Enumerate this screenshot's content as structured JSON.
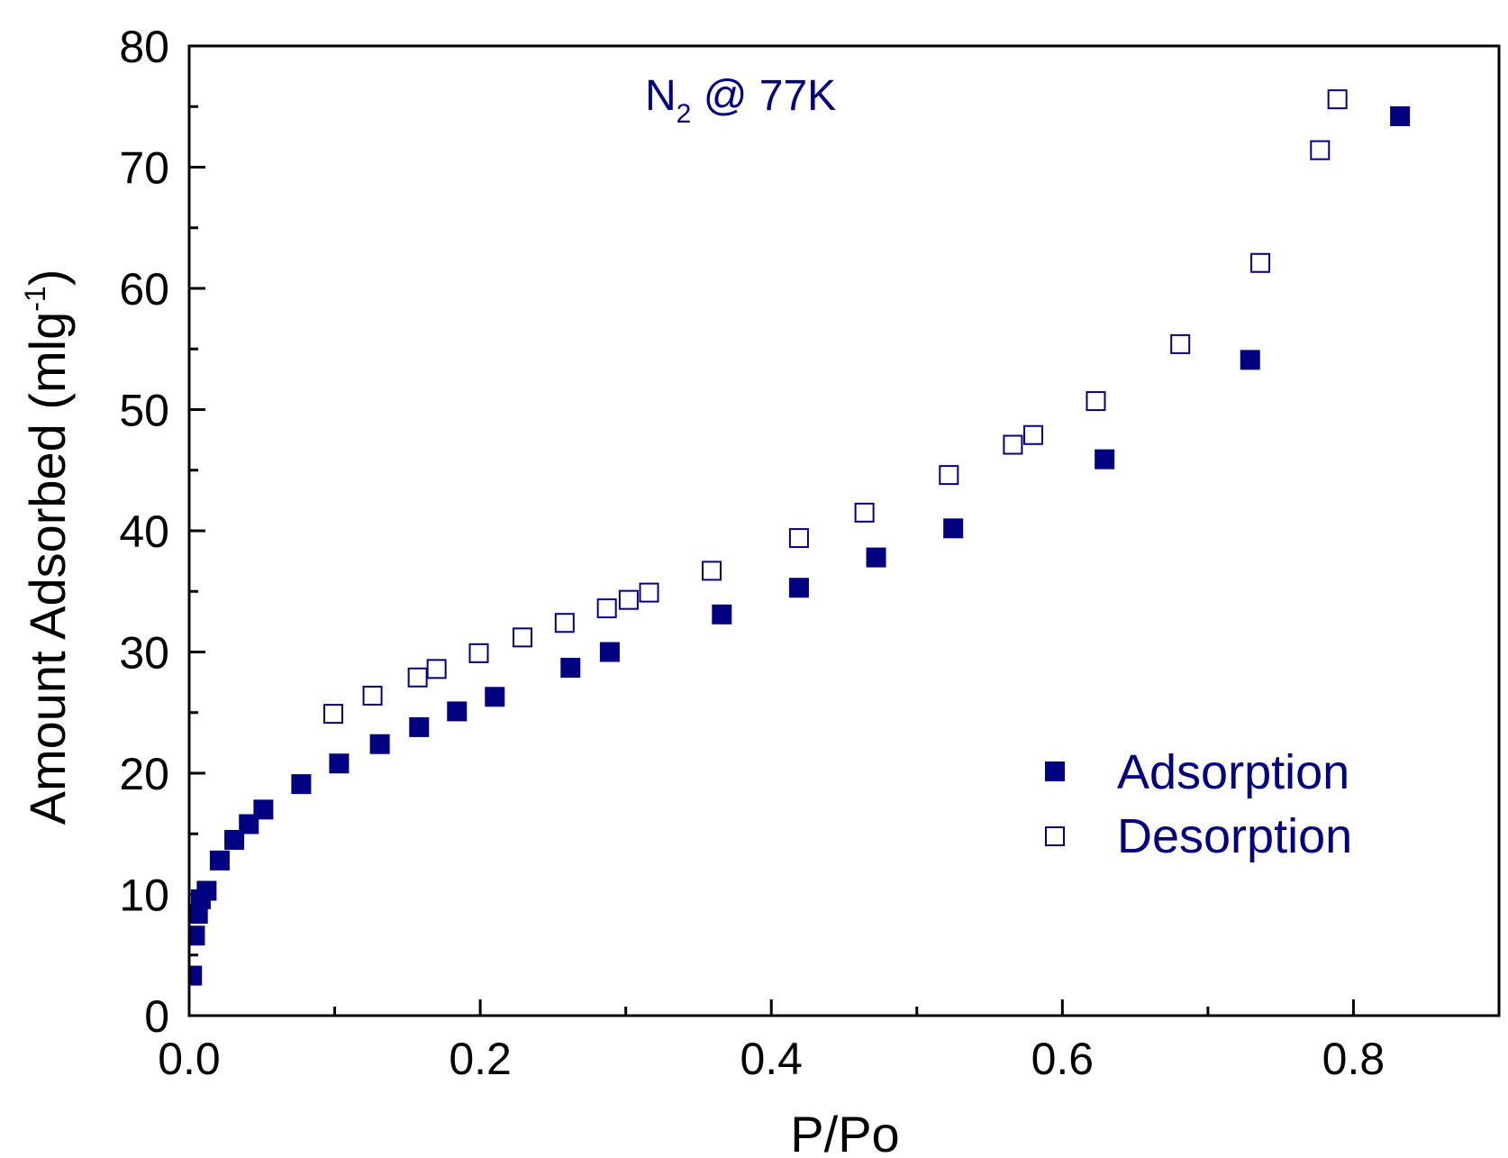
{
  "chart_data": {
    "type": "scatter",
    "title": "",
    "annotation": {
      "main": "N",
      "sub": "2",
      "rest": " @ 77K"
    },
    "xlabel": "P/Po",
    "ylabel": {
      "main": "Amount Adsorbed (mlg",
      "sup": "-1",
      "close": ")"
    },
    "xlim": [
      0.0,
      0.9
    ],
    "ylim": [
      0,
      80
    ],
    "x_ticks": [
      0.0,
      0.2,
      0.4,
      0.6,
      0.8
    ],
    "x_tick_labels": [
      "0.0",
      "0.2",
      "0.4",
      "0.6",
      "0.8"
    ],
    "y_ticks": [
      0,
      10,
      20,
      30,
      40,
      50,
      60,
      70,
      80
    ],
    "y_tick_labels": [
      "0",
      "10",
      "20",
      "30",
      "40",
      "50",
      "60",
      "70",
      "80"
    ],
    "grid": false,
    "legend_position": "bottom-right",
    "color": "#000080",
    "series": [
      {
        "name": "Adsorption",
        "marker": "filled-square",
        "x": [
          0.002,
          0.004,
          0.006,
          0.008,
          0.012,
          0.021,
          0.031,
          0.041,
          0.051,
          0.077,
          0.103,
          0.131,
          0.158,
          0.184,
          0.21,
          0.262,
          0.289,
          0.366,
          0.419,
          0.472,
          0.525,
          0.629,
          0.729,
          0.832
        ],
        "y": [
          3.3,
          6.6,
          8.4,
          9.6,
          10.3,
          12.8,
          14.5,
          15.8,
          17.0,
          19.1,
          20.8,
          22.4,
          23.8,
          25.1,
          26.3,
          28.7,
          30.0,
          33.1,
          35.3,
          37.8,
          40.2,
          45.9,
          54.1,
          74.2
        ]
      },
      {
        "name": "Desorption",
        "marker": "open-square",
        "x": [
          0.099,
          0.126,
          0.157,
          0.17,
          0.199,
          0.229,
          0.258,
          0.287,
          0.302,
          0.316,
          0.359,
          0.419,
          0.464,
          0.522,
          0.566,
          0.58,
          0.623,
          0.681,
          0.736,
          0.777,
          0.789
        ],
        "y": [
          24.9,
          26.4,
          27.9,
          28.6,
          29.9,
          31.2,
          32.4,
          33.6,
          34.3,
          34.9,
          36.7,
          39.4,
          41.5,
          44.6,
          47.1,
          47.9,
          50.7,
          55.4,
          62.1,
          71.4,
          75.6
        ]
      }
    ]
  }
}
